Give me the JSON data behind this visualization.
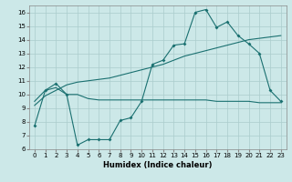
{
  "xlabel": "Humidex (Indice chaleur)",
  "background_color": "#cce8e8",
  "grid_color": "#aacccc",
  "line_color": "#1a7070",
  "xlim": [
    -0.5,
    23.5
  ],
  "ylim": [
    6,
    16.5
  ],
  "xticks": [
    0,
    1,
    2,
    3,
    4,
    5,
    6,
    7,
    8,
    9,
    10,
    11,
    12,
    13,
    14,
    15,
    16,
    17,
    18,
    19,
    20,
    21,
    22,
    23
  ],
  "yticks": [
    6,
    7,
    8,
    9,
    10,
    11,
    12,
    13,
    14,
    15,
    16
  ],
  "line1_x": [
    0,
    1,
    2,
    3,
    4,
    5,
    6,
    7,
    8,
    9,
    10,
    11,
    12,
    13,
    14,
    15,
    16,
    17,
    18,
    19,
    20,
    21,
    22,
    23
  ],
  "line1_y": [
    7.7,
    10.3,
    10.8,
    10.0,
    6.3,
    6.7,
    6.7,
    6.7,
    8.1,
    8.3,
    9.5,
    12.2,
    12.5,
    13.6,
    13.7,
    16.0,
    16.2,
    14.9,
    15.3,
    14.3,
    13.7,
    13.0,
    10.3,
    9.5
  ],
  "line2_x": [
    0,
    1,
    2,
    3,
    4,
    5,
    6,
    7,
    8,
    9,
    10,
    11,
    12,
    13,
    14,
    15,
    16,
    17,
    18,
    19,
    20,
    21,
    22,
    23
  ],
  "line2_y": [
    9.2,
    9.9,
    10.3,
    10.7,
    10.9,
    11.0,
    11.1,
    11.2,
    11.4,
    11.6,
    11.8,
    12.0,
    12.2,
    12.5,
    12.8,
    13.0,
    13.2,
    13.4,
    13.6,
    13.8,
    14.0,
    14.1,
    14.2,
    14.3
  ],
  "line3_x": [
    0,
    1,
    2,
    3,
    4,
    5,
    6,
    7,
    8,
    9,
    10,
    11,
    12,
    13,
    14,
    15,
    16,
    17,
    18,
    19,
    20,
    21,
    22,
    23
  ],
  "line3_y": [
    9.5,
    10.3,
    10.5,
    10.0,
    10.0,
    9.7,
    9.6,
    9.6,
    9.6,
    9.6,
    9.6,
    9.6,
    9.6,
    9.6,
    9.6,
    9.6,
    9.6,
    9.5,
    9.5,
    9.5,
    9.5,
    9.4,
    9.4,
    9.4
  ]
}
